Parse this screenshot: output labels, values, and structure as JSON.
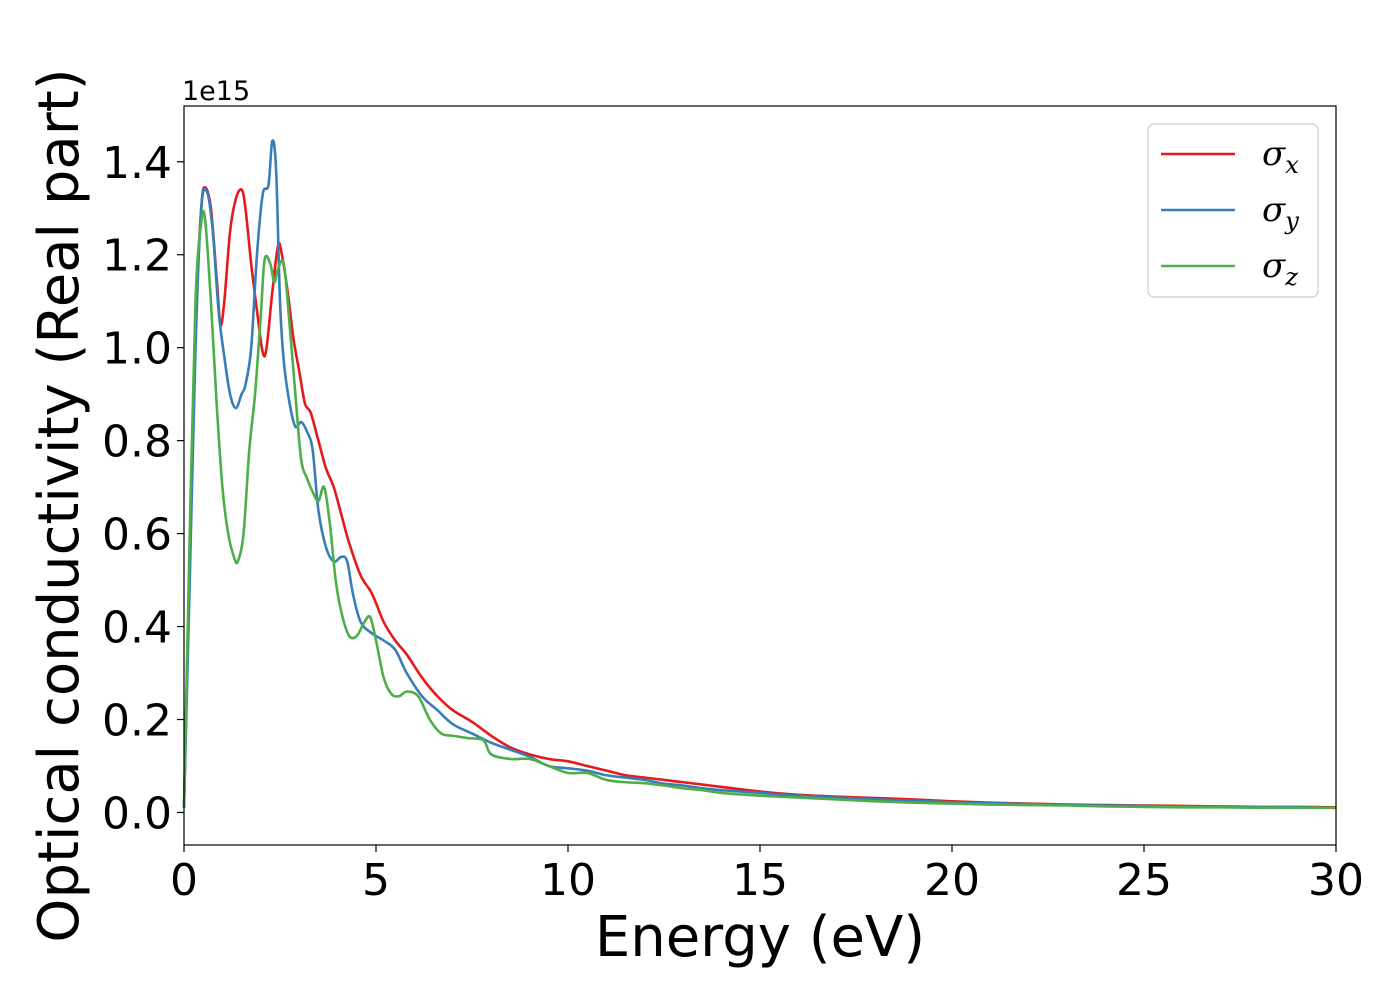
{
  "chart_data": {
    "type": "line",
    "xlabel": "Energy (eV)",
    "ylabel": "Optical conductivity (Real part)",
    "y_offset_label": "1e15",
    "xlim": [
      0,
      30
    ],
    "ylim": [
      -0.07,
      1.52
    ],
    "x_ticks": [
      0,
      5,
      10,
      15,
      20,
      25,
      30
    ],
    "x_tick_labels": [
      "0",
      "5",
      "10",
      "15",
      "20",
      "25",
      "30"
    ],
    "y_ticks": [
      0.0,
      0.2,
      0.4,
      0.6,
      0.8,
      1.0,
      1.2,
      1.4
    ],
    "y_tick_labels": [
      "0.0",
      "0.2",
      "0.4",
      "0.6",
      "0.8",
      "1.0",
      "1.2",
      "1.4"
    ],
    "grid": false,
    "legend_position": "top-right",
    "series": [
      {
        "name": "σx",
        "symbol": "σ",
        "subscript": "x",
        "color": "#e41a1c",
        "x": [
          0,
          0.15,
          0.3,
          0.45,
          0.55,
          0.7,
          0.85,
          0.95,
          1.05,
          1.2,
          1.35,
          1.5,
          1.6,
          1.75,
          1.9,
          2.05,
          2.15,
          2.3,
          2.45,
          2.55,
          2.7,
          2.85,
          3.0,
          3.15,
          3.3,
          3.5,
          3.7,
          3.9,
          4.1,
          4.3,
          4.6,
          4.9,
          5.2,
          5.5,
          5.8,
          6.2,
          6.6,
          7.0,
          7.5,
          8.0,
          8.5,
          9.0,
          9.5,
          10.0,
          10.5,
          11.0,
          11.5,
          12.0,
          12.5,
          13.0,
          13.5,
          14.0,
          15.0,
          16.0,
          17.0,
          18.0,
          19.0,
          20.0,
          21.0,
          22.0,
          23.0,
          24.0,
          25.0,
          26.0,
          27.0,
          28.0,
          29.0,
          30.0
        ],
        "values": [
          0.01,
          0.55,
          1.05,
          1.3,
          1.345,
          1.3,
          1.15,
          1.05,
          1.1,
          1.25,
          1.32,
          1.34,
          1.3,
          1.18,
          1.08,
          0.99,
          1.0,
          1.12,
          1.22,
          1.2,
          1.12,
          1.02,
          0.95,
          0.88,
          0.86,
          0.8,
          0.74,
          0.7,
          0.64,
          0.58,
          0.51,
          0.47,
          0.41,
          0.37,
          0.34,
          0.29,
          0.25,
          0.22,
          0.195,
          0.165,
          0.14,
          0.125,
          0.115,
          0.11,
          0.1,
          0.09,
          0.08,
          0.075,
          0.07,
          0.065,
          0.06,
          0.055,
          0.045,
          0.038,
          0.034,
          0.031,
          0.028,
          0.024,
          0.021,
          0.019,
          0.017,
          0.016,
          0.015,
          0.014,
          0.013,
          0.012,
          0.012,
          0.011
        ]
      },
      {
        "name": "σy",
        "symbol": "σ",
        "subscript": "y",
        "color": "#377eb8",
        "x": [
          0,
          0.15,
          0.3,
          0.45,
          0.6,
          0.75,
          0.9,
          1.05,
          1.2,
          1.35,
          1.5,
          1.6,
          1.75,
          1.9,
          2.05,
          2.2,
          2.3,
          2.4,
          2.5,
          2.6,
          2.75,
          2.9,
          3.05,
          3.2,
          3.35,
          3.5,
          3.7,
          3.9,
          4.1,
          4.25,
          4.4,
          4.6,
          4.9,
          5.2,
          5.5,
          5.8,
          6.2,
          6.6,
          7.0,
          7.5,
          8.0,
          8.5,
          9.0,
          9.5,
          10.0,
          10.5,
          11.0,
          11.5,
          12.0,
          12.5,
          13.0,
          13.5,
          14.0,
          15.0,
          16.0,
          17.0,
          18.0,
          19.0,
          20.0,
          21.0,
          22.0,
          23.0,
          24.0,
          25.0,
          26.0,
          27.0,
          28.0,
          29.0,
          30.0
        ],
        "values": [
          0.01,
          0.5,
          1.0,
          1.3,
          1.335,
          1.25,
          1.08,
          0.98,
          0.9,
          0.87,
          0.9,
          0.92,
          1.0,
          1.2,
          1.33,
          1.35,
          1.445,
          1.38,
          1.1,
          0.97,
          0.88,
          0.83,
          0.84,
          0.82,
          0.78,
          0.65,
          0.57,
          0.54,
          0.55,
          0.54,
          0.47,
          0.41,
          0.385,
          0.37,
          0.35,
          0.3,
          0.25,
          0.22,
          0.19,
          0.17,
          0.15,
          0.135,
          0.12,
          0.1,
          0.095,
          0.09,
          0.08,
          0.075,
          0.07,
          0.062,
          0.058,
          0.052,
          0.048,
          0.042,
          0.036,
          0.032,
          0.028,
          0.025,
          0.022,
          0.02,
          0.018,
          0.016,
          0.015,
          0.014,
          0.013,
          0.012,
          0.011,
          0.011,
          0.01
        ]
      },
      {
        "name": "σz",
        "symbol": "σ",
        "subscript": "z",
        "color": "#4daf4a",
        "x": [
          0,
          0.15,
          0.3,
          0.45,
          0.55,
          0.7,
          0.85,
          1.0,
          1.15,
          1.3,
          1.4,
          1.55,
          1.7,
          1.85,
          2.0,
          2.1,
          2.25,
          2.35,
          2.45,
          2.6,
          2.75,
          2.9,
          3.05,
          3.2,
          3.35,
          3.5,
          3.65,
          3.8,
          3.95,
          4.1,
          4.3,
          4.5,
          4.7,
          4.85,
          5.0,
          5.2,
          5.4,
          5.6,
          5.8,
          6.1,
          6.4,
          6.7,
          7.0,
          7.4,
          7.8,
          8.0,
          8.5,
          9.0,
          9.5,
          10.0,
          10.5,
          11.0,
          11.5,
          12.0,
          12.5,
          13.0,
          13.5,
          14.0,
          15.0,
          16.0,
          17.0,
          18.0,
          19.0,
          20.0,
          21.0,
          22.0,
          23.0,
          24.0,
          25.0,
          26.0,
          27.0,
          28.0,
          29.0,
          30.0
        ],
        "values": [
          0.01,
          0.6,
          1.1,
          1.27,
          1.275,
          1.1,
          0.88,
          0.7,
          0.6,
          0.55,
          0.54,
          0.6,
          0.78,
          0.9,
          1.07,
          1.19,
          1.18,
          1.14,
          1.17,
          1.18,
          1.05,
          0.9,
          0.76,
          0.72,
          0.69,
          0.67,
          0.7,
          0.62,
          0.5,
          0.43,
          0.38,
          0.38,
          0.41,
          0.42,
          0.37,
          0.29,
          0.255,
          0.25,
          0.26,
          0.25,
          0.2,
          0.17,
          0.165,
          0.16,
          0.155,
          0.125,
          0.115,
          0.115,
          0.1,
          0.085,
          0.085,
          0.07,
          0.065,
          0.063,
          0.058,
          0.052,
          0.048,
          0.042,
          0.036,
          0.032,
          0.028,
          0.024,
          0.021,
          0.019,
          0.017,
          0.016,
          0.015,
          0.013,
          0.012,
          0.011,
          0.011,
          0.01,
          0.01,
          0.01
        ]
      }
    ]
  }
}
